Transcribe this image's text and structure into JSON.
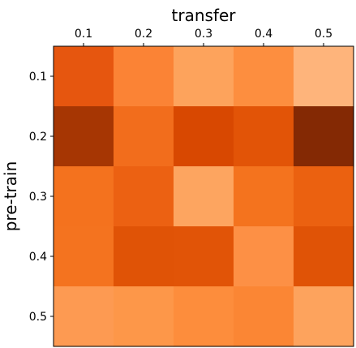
{
  "chart_data": {
    "type": "heatmap",
    "xlabel": "transfer",
    "ylabel": "pre-train",
    "x_categories": [
      "0.1",
      "0.2",
      "0.3",
      "0.4",
      "0.5"
    ],
    "y_categories": [
      "0.1",
      "0.2",
      "0.3",
      "0.4",
      "0.5"
    ],
    "x_axis_position": "top",
    "colormap": "Oranges",
    "colorbar": false,
    "grid": false,
    "cell_colors": [
      [
        "#e6560f",
        "#fb8335",
        "#fda35c",
        "#fd8e3f",
        "#feb47b"
      ],
      [
        "#a63603",
        "#f26d1c",
        "#d84801",
        "#e25407",
        "#842904"
      ],
      [
        "#f4721e",
        "#ec6112",
        "#fda560",
        "#f4731e",
        "#eb6110"
      ],
      [
        "#f4731f",
        "#e05306",
        "#e15407",
        "#fd9045",
        "#e05306"
      ],
      [
        "#fd9a52",
        "#fd9749",
        "#fd8d3c",
        "#fb8634",
        "#fda35d"
      ]
    ]
  }
}
